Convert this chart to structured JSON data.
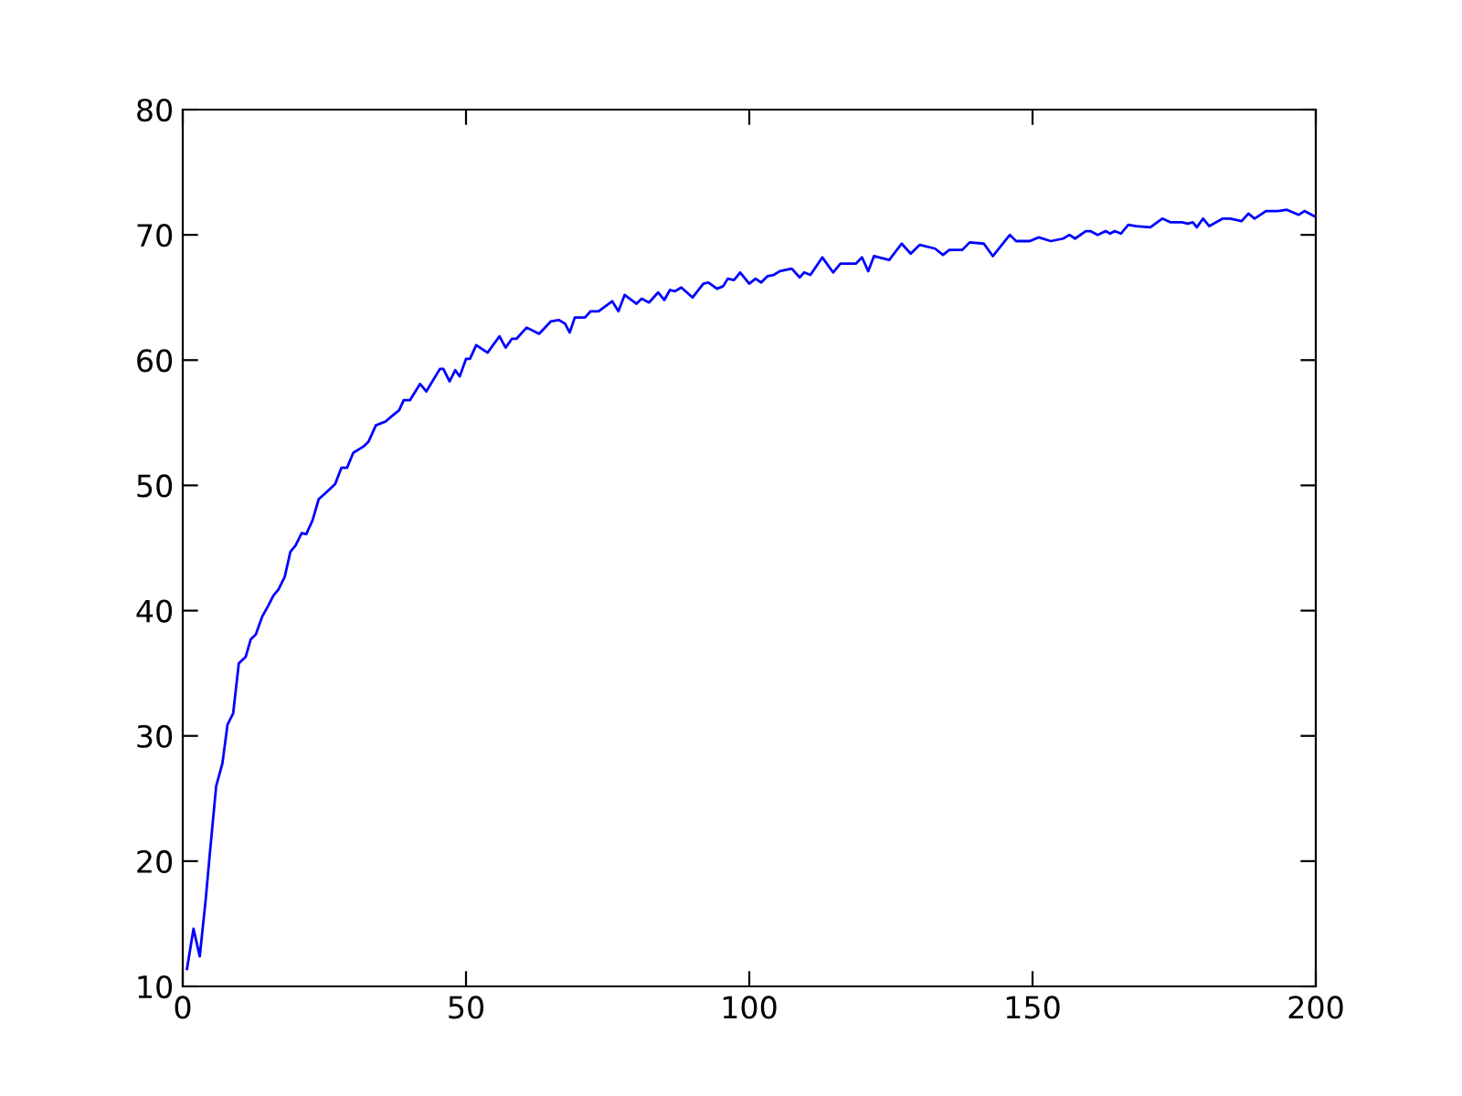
{
  "chart_data": {
    "type": "line",
    "x": [
      0.75,
      1.9,
      3.0,
      4.0,
      4.8,
      5.9,
      7.0,
      7.9,
      8.9,
      9.9,
      11.1,
      12.0,
      12.9,
      14.0,
      15.1,
      16.0,
      16.9,
      18.0,
      19.0,
      19.9,
      21.0,
      21.8,
      22.9,
      24.0,
      25.0,
      26.9,
      28.0,
      29.0,
      30.1,
      31.9,
      32.8,
      34.1,
      35.8,
      37.1,
      38.2,
      39.0,
      40.1,
      41.9,
      43.0,
      45.4,
      46.0,
      47.1,
      48.1,
      48.9,
      50.0,
      50.7,
      51.8,
      53.8,
      55.9,
      57.0,
      58.1,
      58.9,
      60.7,
      62.9,
      65.0,
      66.4,
      67.5,
      68.3,
      69.2,
      71.0,
      72.0,
      73.4,
      75.8,
      76.9,
      78.0,
      80.1,
      81.0,
      82.3,
      83.9,
      85.0,
      86.0,
      86.9,
      88.0,
      90.0,
      91.9,
      92.8,
      94.3,
      95.4,
      96.2,
      97.3,
      98.4,
      100.0,
      101.1,
      102.1,
      103.2,
      104.3,
      105.4,
      107.5,
      108.9,
      109.7,
      110.8,
      112.9,
      114.8,
      116.1,
      118.8,
      119.9,
      121.0,
      122.0,
      124.7,
      126.9,
      128.5,
      130.1,
      132.8,
      134.2,
      135.3,
      137.6,
      138.9,
      141.4,
      143.0,
      146.0,
      147.1,
      149.5,
      151.1,
      153.2,
      155.4,
      156.5,
      157.5,
      159.4,
      160.2,
      161.5,
      162.9,
      163.7,
      164.5,
      165.6,
      166.9,
      168.3,
      170.8,
      172.9,
      174.4,
      176.4,
      177.4,
      178.3,
      179.0,
      180.1,
      181.2,
      183.6,
      184.9,
      186.9,
      188.1,
      189.2,
      191.2,
      193.3,
      194.9,
      197.0,
      198.0,
      199.7
    ],
    "series": [
      {
        "color": "#0000ff",
        "values": [
          11.4,
          14.6,
          12.4,
          16.7,
          20.7,
          26.0,
          27.8,
          30.9,
          31.8,
          35.8,
          36.3,
          37.7,
          38.1,
          39.5,
          40.4,
          41.2,
          41.7,
          42.7,
          44.7,
          45.2,
          46.2,
          46.1,
          47.2,
          48.9,
          49.3,
          50.1,
          51.4,
          51.4,
          52.6,
          53.1,
          53.5,
          54.8,
          55.1,
          55.6,
          56.0,
          56.8,
          56.8,
          58.1,
          57.5,
          59.3,
          59.3,
          58.3,
          59.2,
          58.7,
          60.1,
          60.1,
          61.2,
          60.6,
          61.9,
          61.0,
          61.7,
          61.7,
          62.6,
          62.1,
          63.1,
          63.2,
          62.9,
          62.2,
          63.4,
          63.4,
          63.9,
          63.9,
          64.7,
          63.9,
          65.2,
          64.5,
          64.9,
          64.6,
          65.4,
          64.8,
          65.6,
          65.5,
          65.8,
          65.0,
          66.1,
          66.2,
          65.7,
          65.9,
          66.5,
          66.4,
          67.0,
          66.1,
          66.5,
          66.2,
          66.7,
          66.8,
          67.1,
          67.3,
          66.6,
          67.0,
          66.8,
          68.2,
          67.0,
          67.7,
          67.7,
          68.2,
          67.1,
          68.3,
          68.0,
          69.3,
          68.5,
          69.2,
          68.9,
          68.4,
          68.8,
          68.8,
          69.4,
          69.3,
          68.3,
          70.0,
          69.5,
          69.5,
          69.8,
          69.5,
          69.7,
          70.0,
          69.7,
          70.3,
          70.3,
          70.0,
          70.3,
          70.1,
          70.3,
          70.1,
          70.8,
          70.7,
          70.6,
          71.3,
          71.0,
          71.0,
          70.9,
          71.0,
          70.6,
          71.3,
          70.7,
          71.3,
          71.3,
          71.1,
          71.7,
          71.3,
          71.9,
          71.9,
          72.0,
          71.6,
          71.9,
          71.5
        ]
      }
    ],
    "xlim": [
      0,
      200
    ],
    "xticks": [
      0,
      50,
      100,
      150,
      200
    ],
    "ylim": [
      10,
      80
    ],
    "yticks": [
      10,
      20,
      30,
      40,
      50,
      60,
      70,
      80
    ],
    "grid": false,
    "legend": false
  }
}
